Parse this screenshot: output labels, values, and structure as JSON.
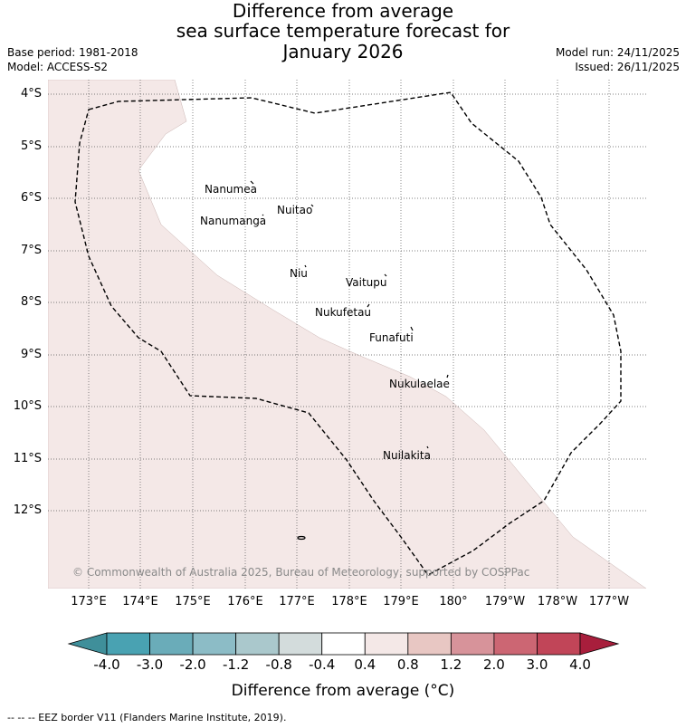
{
  "title": {
    "line1": "Difference from average",
    "line2": "sea surface temperature forecast for",
    "line3": "January 2026"
  },
  "meta": {
    "base_period": "Base period: 1981-2018",
    "model": "Model: ACCESS-S2",
    "model_run": "Model run: 24/11/2025",
    "issued": "Issued: 26/11/2025"
  },
  "map": {
    "latitude_labels": [
      "4°S",
      "5°S",
      "6°S",
      "7°S",
      "8°S",
      "9°S",
      "10°S",
      "11°S",
      "12°S"
    ],
    "longitude_labels": [
      "173°E",
      "174°E",
      "175°E",
      "176°E",
      "177°E",
      "178°E",
      "179°E",
      "180°",
      "179°W",
      "178°W",
      "177°W"
    ],
    "islands": [
      "Nanumea",
      "Nuitao",
      "Nanumanga",
      "Niu",
      "Vaitupu",
      "Nukufetau",
      "Funafuti",
      "Nukulaelae",
      "Nuilakita"
    ],
    "copyright": "© Commonwealth of Australia 2025, Bureau of Meteorology, supported by COSPPac",
    "colors": {
      "land_shade": "#f4e8e7",
      "eez_border": "#000000",
      "gridline": "#555555"
    }
  },
  "colorbar": {
    "ticks": [
      "-4.0",
      "-3.0",
      "-2.0",
      "-1.2",
      "-0.8",
      "-0.4",
      "0.4",
      "0.8",
      "1.2",
      "2.0",
      "3.0",
      "4.0"
    ],
    "colors": [
      "#3f8f9a",
      "#49a2b2",
      "#6aacb9",
      "#8cbcc6",
      "#aac8cc",
      "#d3dcdc",
      "#ffffff",
      "#f4e8e7",
      "#e8c7c3",
      "#d7939a",
      "#cc6673",
      "#c14558",
      "#a81e3c"
    ],
    "label": "Difference from average (°C)"
  },
  "legend": {
    "eez": "-- -- -- EEZ border V11 (Flanders Marine Institute, 2019)."
  }
}
